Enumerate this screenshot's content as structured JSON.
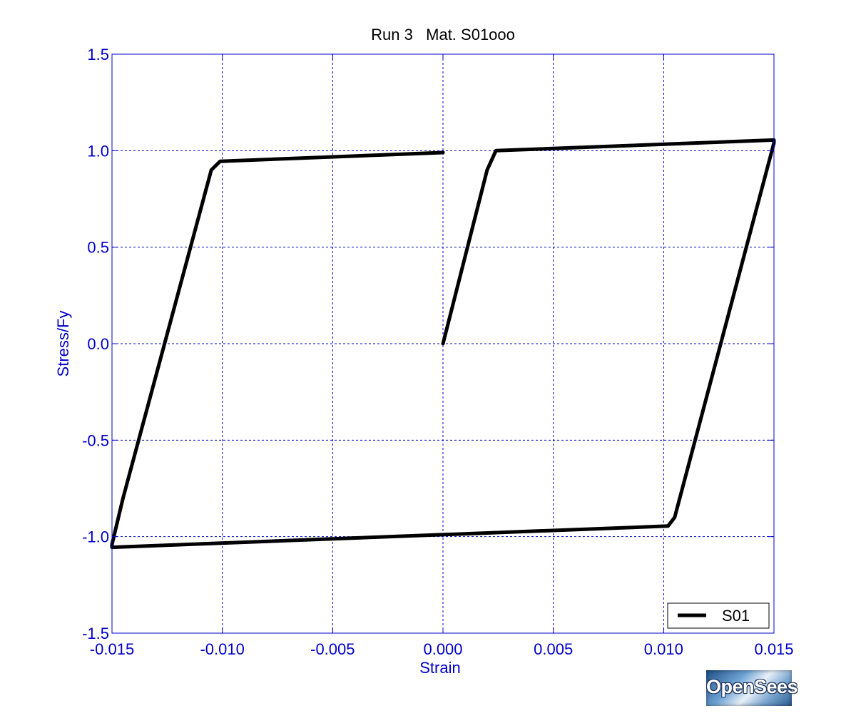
{
  "chart_data": {
    "type": "line",
    "title": "Run 3   Mat. S01ooo",
    "xlabel": "Strain",
    "ylabel": "Stress/Fy",
    "xlim": [
      -0.015,
      0.015
    ],
    "ylim": [
      -1.5,
      1.5
    ],
    "x_ticks": [
      -0.015,
      -0.01,
      -0.005,
      0.0,
      0.005,
      0.01,
      0.015
    ],
    "x_tick_labels": [
      "-0.015",
      "-0.010",
      "-0.005",
      "0.000",
      "0.005",
      "0.010",
      "0.015"
    ],
    "y_ticks": [
      1.5,
      1.0,
      0.5,
      0.0,
      -0.5,
      -1.0,
      -1.5
    ],
    "y_tick_labels": [
      "1.5",
      "1.0",
      "0.5",
      "0.0",
      "-0.5",
      "-1.0",
      "-1.5"
    ],
    "grid": true,
    "legend_position": "bottom-right",
    "series": [
      {
        "name": "S01",
        "color": "#000000",
        "x": [
          0.0,
          0.002,
          0.0024,
          0.015,
          0.015,
          0.0105,
          0.0102,
          -0.015,
          -0.015,
          -0.0145,
          -0.0105,
          -0.0101,
          0.0
        ],
        "y": [
          0.0,
          0.9,
          1.0,
          1.055,
          1.04,
          -0.9,
          -0.945,
          -1.055,
          -1.04,
          -0.8,
          0.9,
          0.945,
          0.99
        ]
      }
    ]
  },
  "logo": {
    "text": "OpenSees"
  }
}
